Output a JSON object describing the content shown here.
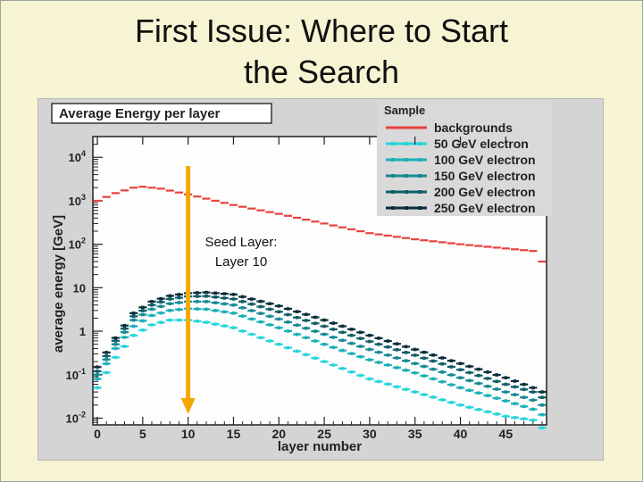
{
  "slide": {
    "title_line1": "First Issue: Where to Start",
    "title_line2": "the Search",
    "annotation_line1": "Seed Layer:",
    "annotation_line2": "Layer 10",
    "arrow_color": "#f5a800"
  },
  "chart_data": {
    "type": "line",
    "title": "Average Energy per layer",
    "xlabel": "layer number",
    "ylabel": "average energy [GeV]",
    "y_scale": "log",
    "xlim": [
      0,
      49
    ],
    "ylim": [
      0.007,
      30000
    ],
    "x_ticks": [
      "0",
      "5",
      "10",
      "15",
      "20",
      "25",
      "30",
      "35",
      "40",
      "45"
    ],
    "y_ticks": [
      "10-2",
      "10-1",
      "1",
      "10",
      "102",
      "103",
      "104"
    ],
    "legend_title": "Sample",
    "legend_position": "top-right",
    "marker_layer": 10,
    "series": [
      {
        "name": "backgrounds",
        "color": "#e8413e",
        "anchors": [
          [
            0,
            1000
          ],
          [
            2,
            1500
          ],
          [
            4,
            2000
          ],
          [
            5,
            2100
          ],
          [
            7,
            1900
          ],
          [
            10,
            1400
          ],
          [
            15,
            800
          ],
          [
            20,
            500
          ],
          [
            25,
            300
          ],
          [
            30,
            180
          ],
          [
            35,
            130
          ],
          [
            40,
            100
          ],
          [
            45,
            80
          ],
          [
            48,
            70
          ],
          [
            49,
            40
          ]
        ]
      },
      {
        "name": "50 GeV electron",
        "color": "#26d6dc",
        "anchors": [
          [
            0,
            0.05
          ],
          [
            2,
            0.25
          ],
          [
            4,
            0.8
          ],
          [
            6,
            1.4
          ],
          [
            8,
            1.8
          ],
          [
            10,
            1.8
          ],
          [
            12,
            1.6
          ],
          [
            15,
            1.2
          ],
          [
            20,
            0.5
          ],
          [
            25,
            0.2
          ],
          [
            30,
            0.08
          ],
          [
            35,
            0.04
          ],
          [
            40,
            0.02
          ],
          [
            45,
            0.011
          ],
          [
            48,
            0.009
          ],
          [
            49,
            0.006
          ]
        ]
      },
      {
        "name": "100 GeV electron",
        "color": "#1ab0b8",
        "anchors": [
          [
            0,
            0.08
          ],
          [
            2,
            0.4
          ],
          [
            4,
            1.3
          ],
          [
            6,
            2.3
          ],
          [
            8,
            3.0
          ],
          [
            10,
            3.3
          ],
          [
            12,
            3.2
          ],
          [
            15,
            2.6
          ],
          [
            20,
            1.2
          ],
          [
            25,
            0.5
          ],
          [
            30,
            0.22
          ],
          [
            35,
            0.11
          ],
          [
            40,
            0.05
          ],
          [
            45,
            0.025
          ],
          [
            48,
            0.016
          ],
          [
            49,
            0.012
          ]
        ]
      },
      {
        "name": "150 GeV electron",
        "color": "#148a94",
        "anchors": [
          [
            0,
            0.1
          ],
          [
            2,
            0.5
          ],
          [
            4,
            1.8
          ],
          [
            6,
            3.2
          ],
          [
            8,
            4.3
          ],
          [
            10,
            4.8
          ],
          [
            12,
            4.8
          ],
          [
            15,
            4.0
          ],
          [
            20,
            1.9
          ],
          [
            25,
            0.85
          ],
          [
            30,
            0.38
          ],
          [
            35,
            0.18
          ],
          [
            40,
            0.085
          ],
          [
            45,
            0.04
          ],
          [
            48,
            0.026
          ],
          [
            49,
            0.02
          ]
        ]
      },
      {
        "name": "200 GeV electron",
        "color": "#0e5e68",
        "anchors": [
          [
            0,
            0.12
          ],
          [
            2,
            0.6
          ],
          [
            4,
            2.2
          ],
          [
            6,
            4.0
          ],
          [
            8,
            5.5
          ],
          [
            10,
            6.3
          ],
          [
            12,
            6.4
          ],
          [
            15,
            5.5
          ],
          [
            20,
            2.8
          ],
          [
            25,
            1.3
          ],
          [
            30,
            0.58
          ],
          [
            35,
            0.28
          ],
          [
            40,
            0.13
          ],
          [
            45,
            0.06
          ],
          [
            48,
            0.04
          ],
          [
            49,
            0.03
          ]
        ]
      },
      {
        "name": "250 GeV electron",
        "color": "#0b2e3c",
        "anchors": [
          [
            0,
            0.15
          ],
          [
            2,
            0.7
          ],
          [
            4,
            2.6
          ],
          [
            6,
            4.8
          ],
          [
            8,
            6.5
          ],
          [
            10,
            7.5
          ],
          [
            12,
            7.8
          ],
          [
            15,
            7.0
          ],
          [
            20,
            3.8
          ],
          [
            25,
            1.8
          ],
          [
            30,
            0.8
          ],
          [
            35,
            0.38
          ],
          [
            40,
            0.18
          ],
          [
            45,
            0.085
          ],
          [
            48,
            0.05
          ],
          [
            49,
            0.04
          ]
        ]
      }
    ]
  }
}
